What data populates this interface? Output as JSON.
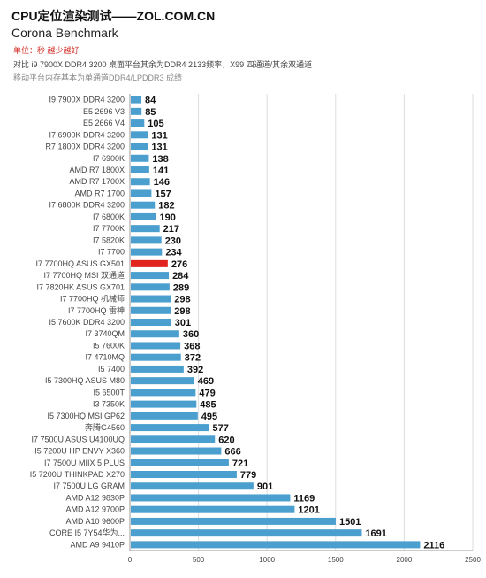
{
  "header": {
    "title": "CPU定位渲染测试——ZOL.COM.CN",
    "subtitle": "Corona Benchmark",
    "unit_note": "单位：秒 越少越好",
    "compare_note": "对比 i9 7900X DDR4 3200 桌面平台其余为DDR4 2133频率，X99 四通道/其余双通道",
    "mobile_note": "移动平台内存基本为单通道DDR4/LPDDR3 成绩"
  },
  "chart_data": {
    "type": "bar",
    "orientation": "horizontal",
    "categories": [
      "I9 7900X DDR4 3200",
      "E5 2696 V3",
      "E5 2666 V4",
      "I7 6900K DDR4 3200",
      "R7 1800X DDR4 3200",
      "I7 6900K",
      "AMD R7 1800X",
      "AMD R7 1700X",
      "AMD R7 1700",
      "I7 6800K DDR4 3200",
      "I7 6800K",
      "I7 7700K",
      "I7 5820K",
      "I7 7700",
      "I7 7700HQ ASUS GX501",
      "I7 7700HQ MSI 双通道",
      "I7 7820HK ASUS GX701",
      "I7 7700HQ 机械师",
      "I7 7700HQ 雷神",
      "I5 7600K DDR4 3200",
      "I7 3740QM",
      "I5 7600K",
      "I7 4710MQ",
      "I5 7400",
      "I5 7300HQ ASUS M80",
      "I5 6500T",
      "I3 7350K",
      "I5 7300HQ MSI GP62",
      "奔腾G4560",
      "I7 7500U ASUS U4100UQ",
      "I5 7200U HP ENVY X360",
      "I7 7500U MIIX 5 PLUS",
      "I5 7200U THINKPAD X270",
      "I7 7500U LG GRAM",
      "AMD A12 9830P",
      "AMD A12 9700P",
      "AMD A10 9600P",
      "CORE I5 7Y54华为...",
      "AMD A9 9410P"
    ],
    "values": [
      84,
      85,
      105,
      131,
      131,
      138,
      141,
      146,
      157,
      182,
      190,
      217,
      230,
      234,
      276,
      284,
      289,
      298,
      298,
      301,
      360,
      368,
      372,
      392,
      469,
      479,
      485,
      495,
      577,
      620,
      666,
      721,
      779,
      901,
      1169,
      1201,
      1501,
      1691,
      2116
    ],
    "highlight_index": 14,
    "colors": {
      "bar": "#4a9fcf",
      "highlight": "#e0231c",
      "grid": "#dddddd"
    },
    "xlim": [
      0,
      2500
    ],
    "xticks": [
      0,
      500,
      1000,
      1500,
      2000,
      2500
    ],
    "xlabel": "",
    "ylabel": "",
    "grid": true
  }
}
